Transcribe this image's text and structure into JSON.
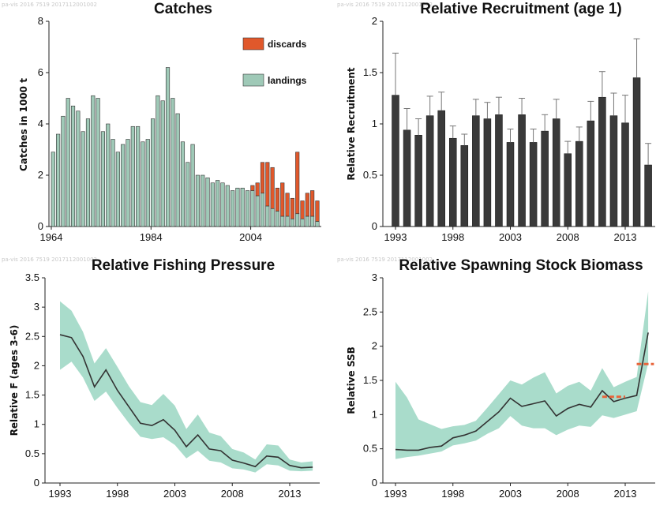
{
  "colors": {
    "landings": "#9fc9b7",
    "discards": "#e0582b",
    "recruit_bar": "#3a3a3a",
    "band": "#a9dccb",
    "line": "#333333",
    "refpoint": "#e8643a"
  },
  "chart_data": [
    {
      "id": "catches",
      "type": "bar",
      "title": "Catches",
      "ylabel": "Catches in 1000 t",
      "xlabel": "",
      "ylim": [
        0,
        8
      ],
      "yticks": [
        "0",
        "2",
        "4",
        "6",
        "8"
      ],
      "xticks": [
        "1964",
        "1984",
        "2004"
      ],
      "legend": "top-right",
      "series": [
        {
          "name": "discards",
          "values": [
            0,
            0,
            0,
            0,
            0,
            0,
            0,
            0,
            0,
            0,
            0,
            0,
            0,
            0,
            0,
            0,
            0,
            0,
            0,
            0,
            0,
            0,
            0,
            0,
            0,
            0,
            0,
            0,
            0,
            0,
            0,
            0,
            0,
            0,
            0,
            0,
            0,
            0,
            0,
            0,
            0.2,
            0.5,
            1.2,
            1.7,
            1.6,
            0.9,
            1.3,
            0.9,
            0.8,
            2.4,
            0.7,
            0.9,
            1.0,
            0.8
          ]
        },
        {
          "name": "landings",
          "values": [
            2.9,
            3.6,
            4.3,
            5.0,
            4.7,
            4.5,
            3.7,
            4.2,
            5.1,
            5.0,
            3.7,
            4.0,
            3.4,
            2.9,
            3.2,
            3.4,
            3.9,
            3.9,
            3.3,
            3.4,
            4.2,
            5.1,
            4.9,
            6.2,
            5.0,
            4.4,
            3.3,
            2.5,
            3.2,
            2.0,
            2.0,
            1.9,
            1.7,
            1.8,
            1.7,
            1.6,
            1.4,
            1.5,
            1.5,
            1.4,
            1.4,
            1.2,
            1.3,
            0.8,
            0.7,
            0.6,
            0.4,
            0.4,
            0.3,
            0.5,
            0.3,
            0.4,
            0.4,
            0.2
          ]
        }
      ],
      "x": [
        1964,
        1965,
        1966,
        1967,
        1968,
        1969,
        1970,
        1971,
        1972,
        1973,
        1974,
        1975,
        1976,
        1977,
        1978,
        1979,
        1980,
        1981,
        1982,
        1983,
        1984,
        1985,
        1986,
        1987,
        1988,
        1989,
        1990,
        1991,
        1992,
        1993,
        1994,
        1995,
        1996,
        1997,
        1998,
        1999,
        2000,
        2001,
        2002,
        2003,
        2004,
        2005,
        2006,
        2007,
        2008,
        2009,
        2010,
        2011,
        2012,
        2013,
        2014,
        2015,
        2016,
        2017
      ]
    },
    {
      "id": "recruitment",
      "type": "bar",
      "title": "Relative Recruitment (age 1)",
      "ylabel": "Relative Recruitment",
      "xlabel": "",
      "ylim": [
        0,
        2
      ],
      "yticks": [
        "0",
        "0.5",
        "1",
        "1.5",
        "2"
      ],
      "xticks": [
        "1993",
        "1998",
        "2003",
        "2008",
        "2013"
      ],
      "x": [
        1993,
        1994,
        1995,
        1996,
        1997,
        1998,
        1999,
        2000,
        2001,
        2002,
        2003,
        2004,
        2005,
        2006,
        2007,
        2008,
        2009,
        2010,
        2011,
        2012,
        2013,
        2014,
        2015
      ],
      "values": [
        1.28,
        0.94,
        0.89,
        1.08,
        1.13,
        0.86,
        0.79,
        1.08,
        1.05,
        1.09,
        0.82,
        1.09,
        0.82,
        0.93,
        1.05,
        0.71,
        0.83,
        1.03,
        1.26,
        1.08,
        1.01,
        1.45,
        0.6
      ],
      "upper": [
        1.69,
        1.15,
        1.05,
        1.27,
        1.31,
        0.98,
        0.9,
        1.24,
        1.21,
        1.26,
        0.95,
        1.25,
        0.95,
        1.09,
        1.24,
        0.83,
        0.97,
        1.22,
        1.51,
        1.3,
        1.28,
        1.83,
        0.81
      ]
    },
    {
      "id": "fishing",
      "type": "area",
      "title": "Relative Fishing Pressure",
      "ylabel": "Relative F (ages 3-6)",
      "xlabel": "",
      "ylim": [
        0,
        3.5
      ],
      "yticks": [
        "0",
        "0.5",
        "1",
        "1.5",
        "2",
        "2.5",
        "3",
        "3.5"
      ],
      "xticks": [
        "1993",
        "1998",
        "2003",
        "2008",
        "2013"
      ],
      "x": [
        1993,
        1994,
        1995,
        1996,
        1997,
        1998,
        1999,
        2000,
        2001,
        2002,
        2003,
        2004,
        2005,
        2006,
        2007,
        2008,
        2009,
        2010,
        2011,
        2012,
        2013,
        2014,
        2015
      ],
      "values": [
        2.53,
        2.48,
        2.16,
        1.64,
        1.93,
        1.58,
        1.3,
        1.02,
        0.98,
        1.08,
        0.9,
        0.62,
        0.82,
        0.58,
        0.55,
        0.39,
        0.34,
        0.28,
        0.46,
        0.44,
        0.3,
        0.26,
        0.27
      ],
      "upper": [
        3.1,
        2.94,
        2.58,
        2.04,
        2.3,
        1.98,
        1.65,
        1.38,
        1.33,
        1.52,
        1.32,
        0.92,
        1.17,
        0.86,
        0.8,
        0.58,
        0.52,
        0.4,
        0.66,
        0.64,
        0.4,
        0.35,
        0.37
      ],
      "lower": [
        1.93,
        2.07,
        1.8,
        1.4,
        1.56,
        1.28,
        1.02,
        0.79,
        0.75,
        0.78,
        0.65,
        0.42,
        0.55,
        0.38,
        0.35,
        0.25,
        0.23,
        0.18,
        0.32,
        0.3,
        0.21,
        0.2,
        0.21
      ]
    },
    {
      "id": "ssb",
      "type": "area",
      "title": "Relative Spawning Stock Biomass",
      "ylabel": "Relative SSB",
      "xlabel": "",
      "ylim": [
        0,
        3
      ],
      "yticks": [
        "0",
        "0.5",
        "1",
        "1.5",
        "2",
        "2.5",
        "3"
      ],
      "xticks": [
        "1993",
        "1998",
        "2003",
        "2008",
        "2013"
      ],
      "x": [
        1993,
        1994,
        1995,
        1996,
        1997,
        1998,
        1999,
        2000,
        2001,
        2002,
        2003,
        2004,
        2005,
        2006,
        2007,
        2008,
        2009,
        2010,
        2011,
        2012,
        2013,
        2014,
        2015
      ],
      "values": [
        0.49,
        0.48,
        0.48,
        0.52,
        0.54,
        0.66,
        0.7,
        0.76,
        0.9,
        1.04,
        1.24,
        1.12,
        1.16,
        1.2,
        0.98,
        1.09,
        1.15,
        1.11,
        1.35,
        1.19,
        1.24,
        1.28,
        2.2
      ],
      "upper": [
        1.48,
        1.25,
        0.93,
        0.86,
        0.79,
        0.83,
        0.85,
        0.91,
        1.1,
        1.3,
        1.5,
        1.44,
        1.54,
        1.62,
        1.31,
        1.42,
        1.48,
        1.35,
        1.68,
        1.4,
        1.48,
        1.55,
        2.8
      ],
      "lower": [
        0.35,
        0.38,
        0.4,
        0.43,
        0.46,
        0.55,
        0.58,
        0.62,
        0.72,
        0.8,
        0.98,
        0.84,
        0.8,
        0.8,
        0.7,
        0.78,
        0.84,
        0.82,
        0.99,
        0.95,
        1.0,
        1.05,
        1.75
      ],
      "reference_segments": [
        {
          "x_start": 2011,
          "x_end": 2013,
          "y": 1.26
        },
        {
          "x_start": 2014,
          "x_end": 2015.5,
          "y": 1.74
        }
      ]
    }
  ]
}
